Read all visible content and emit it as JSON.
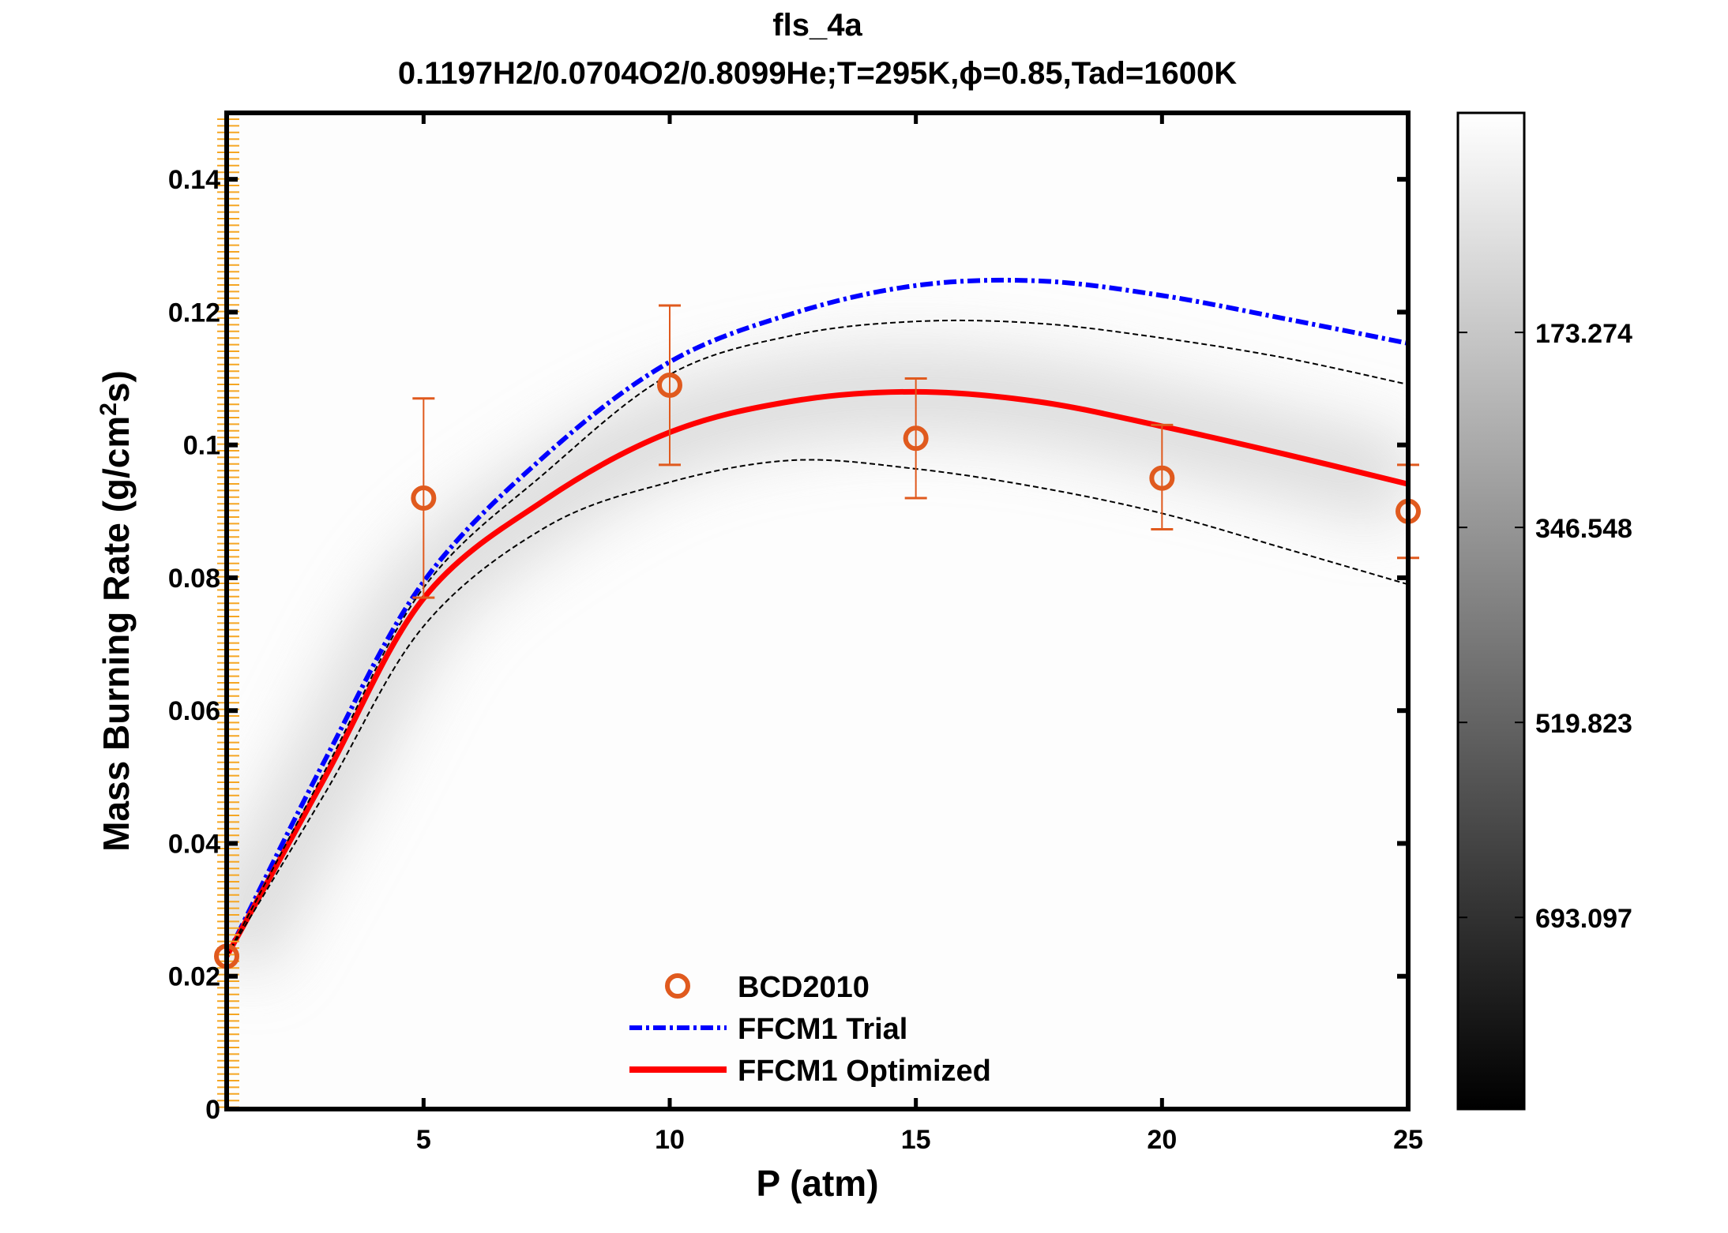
{
  "chart_data": {
    "type": "line",
    "title": "fls_4a",
    "subtitle": "0.1197H2/0.0704O2/0.8099He;T=295K,ϕ=0.85,Tad=1600K",
    "xlabel": "P (atm)",
    "ylabel": "Mass Burning Rate (g/cm²s)",
    "ylabel_parts": {
      "main": "Mass Burning Rate (g/cm",
      "sup": "2",
      "end": "s)"
    },
    "xlim": [
      1,
      25
    ],
    "ylim": [
      0,
      0.15
    ],
    "xticks": [
      "5",
      "10",
      "15",
      "20",
      "25"
    ],
    "xtick_values": [
      5,
      10,
      15,
      20,
      25
    ],
    "yticks": [
      "0",
      "0.02",
      "0.04",
      "0.06",
      "0.08",
      "0.1",
      "0.12",
      "0.14"
    ],
    "ytick_values": [
      0,
      0.02,
      0.04,
      0.06,
      0.08,
      0.1,
      0.12,
      0.14
    ],
    "grid": false,
    "legend_position": "bottom-center",
    "series": [
      {
        "name": "BCD2010",
        "kind": "scatter-errorbar",
        "color": "#e05a1e",
        "x": [
          1,
          5,
          10,
          15,
          20,
          25
        ],
        "y": [
          0.023,
          0.092,
          0.109,
          0.101,
          0.095,
          0.09
        ],
        "err_low": [
          0.023,
          0.077,
          0.097,
          0.092,
          0.0873,
          0.083
        ],
        "err_high": [
          0.023,
          0.107,
          0.121,
          0.11,
          0.103,
          0.097
        ]
      },
      {
        "name": "FFCM1 Trial",
        "kind": "line",
        "style": "dash-dot",
        "color": "#0000ff",
        "x": [
          1,
          3,
          5,
          7.5,
          10,
          12.5,
          15,
          17.5,
          20,
          22.5,
          25
        ],
        "y": [
          0.023,
          0.0526,
          0.0794,
          0.0986,
          0.1125,
          0.1198,
          0.124,
          0.1247,
          0.1225,
          0.119,
          0.1153
        ]
      },
      {
        "name": "FFCM1 Optimized",
        "kind": "line",
        "style": "solid",
        "color": "#ff0000",
        "x": [
          1,
          3,
          5,
          7.5,
          10,
          12.5,
          15,
          17.5,
          20,
          22.5,
          25
        ],
        "y": [
          0.023,
          0.05,
          0.0769,
          0.0919,
          0.1019,
          0.1066,
          0.108,
          0.1065,
          0.1028,
          0.0986,
          0.0941
        ]
      },
      {
        "kind": "line",
        "style": "dashed",
        "color": "#000000",
        "role": "upper-bound",
        "x": [
          1,
          3,
          5,
          7.5,
          10,
          12.5,
          15,
          17.5,
          20,
          22.5,
          25
        ],
        "y": [
          0.023,
          0.051,
          0.0785,
          0.096,
          0.1106,
          0.1165,
          0.1186,
          0.1183,
          0.1161,
          0.1131,
          0.1091
        ]
      },
      {
        "kind": "line",
        "style": "dashed",
        "color": "#000000",
        "role": "lower-bound",
        "x": [
          1,
          3,
          5,
          7.5,
          10,
          12.5,
          15,
          17.5,
          20,
          22.5,
          25
        ],
        "y": [
          0.023,
          0.0476,
          0.0727,
          0.0877,
          0.0944,
          0.0977,
          0.0964,
          0.0936,
          0.0897,
          0.0844,
          0.079
        ]
      }
    ],
    "colorbar": {
      "colormap": "gray-reversed",
      "range": [
        -21.8,
        863.4
      ],
      "ticks": [
        "173.274",
        "346.548",
        "519.823",
        "693.097"
      ],
      "tick_values": [
        173.274,
        346.548,
        519.823,
        693.097
      ]
    }
  }
}
